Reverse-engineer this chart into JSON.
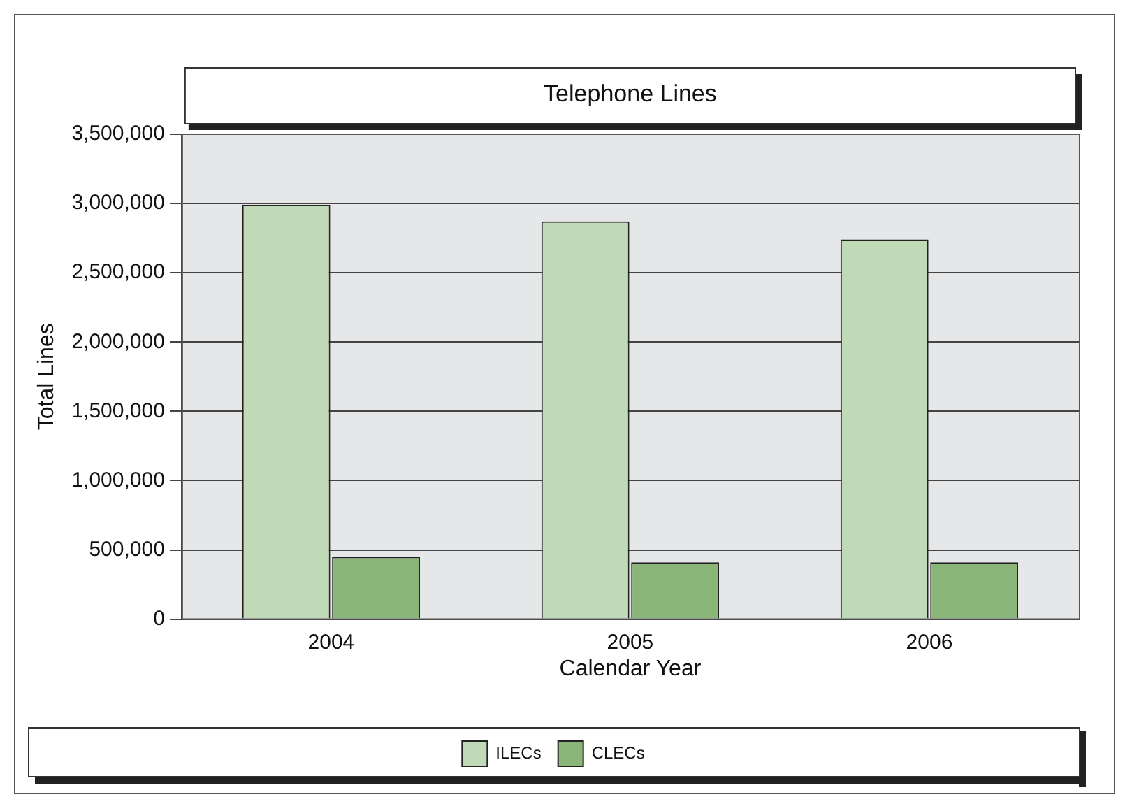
{
  "chart_data": {
    "type": "bar",
    "title": "Telephone Lines",
    "xlabel": "Calendar Year",
    "ylabel": "Total Lines",
    "categories": [
      "2004",
      "2005",
      "2006"
    ],
    "series": [
      {
        "name": "ILECs",
        "color": "#c0d9b6",
        "values": [
          2990000,
          2870000,
          2740000
        ]
      },
      {
        "name": "CLECs",
        "color": "#8ab67a",
        "values": [
          450000,
          410000,
          410000
        ]
      }
    ],
    "ylim": [
      0,
      3500000
    ],
    "yticks": [
      {
        "value": 0,
        "label": "0"
      },
      {
        "value": 500000,
        "label": "500,000"
      },
      {
        "value": 1000000,
        "label": "1,000,000"
      },
      {
        "value": 1500000,
        "label": "1,500,000"
      },
      {
        "value": 2000000,
        "label": "2,000,000"
      },
      {
        "value": 2500000,
        "label": "2,500,000"
      },
      {
        "value": 3000000,
        "label": "3,000,000"
      },
      {
        "value": 3500000,
        "label": "3,500,000"
      }
    ],
    "grid": "y",
    "legend": "bottom"
  }
}
